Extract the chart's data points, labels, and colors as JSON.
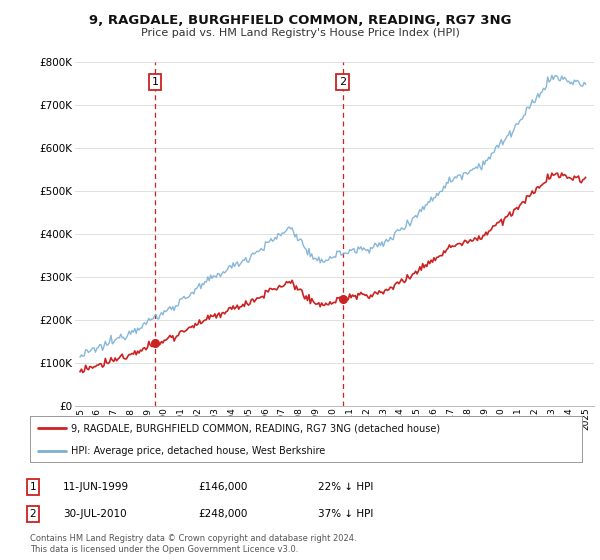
{
  "title": "9, RAGDALE, BURGHFIELD COMMON, READING, RG7 3NG",
  "subtitle": "Price paid vs. HM Land Registry's House Price Index (HPI)",
  "bg_color": "#ffffff",
  "grid_color": "#e0e0e0",
  "hpi_color": "#7bafd4",
  "price_color": "#cc2222",
  "marker1_x": 1999.44,
  "marker1_price": 146000,
  "marker2_x": 2010.58,
  "marker2_price": 248000,
  "legend_line1": "9, RAGDALE, BURGHFIELD COMMON, READING, RG7 3NG (detached house)",
  "legend_line2": "HPI: Average price, detached house, West Berkshire",
  "table_dates": [
    "11-JUN-1999",
    "30-JUL-2010"
  ],
  "table_prices": [
    "£146,000",
    "£248,000"
  ],
  "table_hpi": [
    "22% ↓ HPI",
    "37% ↓ HPI"
  ],
  "footnote1": "Contains HM Land Registry data © Crown copyright and database right 2024.",
  "footnote2": "This data is licensed under the Open Government Licence v3.0.",
  "ylim": [
    0,
    800000
  ],
  "xlim_left": 1994.7,
  "xlim_right": 2025.5,
  "yticks": [
    0,
    100000,
    200000,
    300000,
    400000,
    500000,
    600000,
    700000,
    800000
  ],
  "ytick_labels": [
    "£0",
    "£100K",
    "£200K",
    "£300K",
    "£400K",
    "£500K",
    "£600K",
    "£700K",
    "£800K"
  ],
  "xticks": [
    1995,
    1996,
    1997,
    1998,
    1999,
    2000,
    2001,
    2002,
    2003,
    2004,
    2005,
    2006,
    2007,
    2008,
    2009,
    2010,
    2011,
    2012,
    2013,
    2014,
    2015,
    2016,
    2017,
    2018,
    2019,
    2020,
    2021,
    2022,
    2023,
    2024,
    2025
  ]
}
